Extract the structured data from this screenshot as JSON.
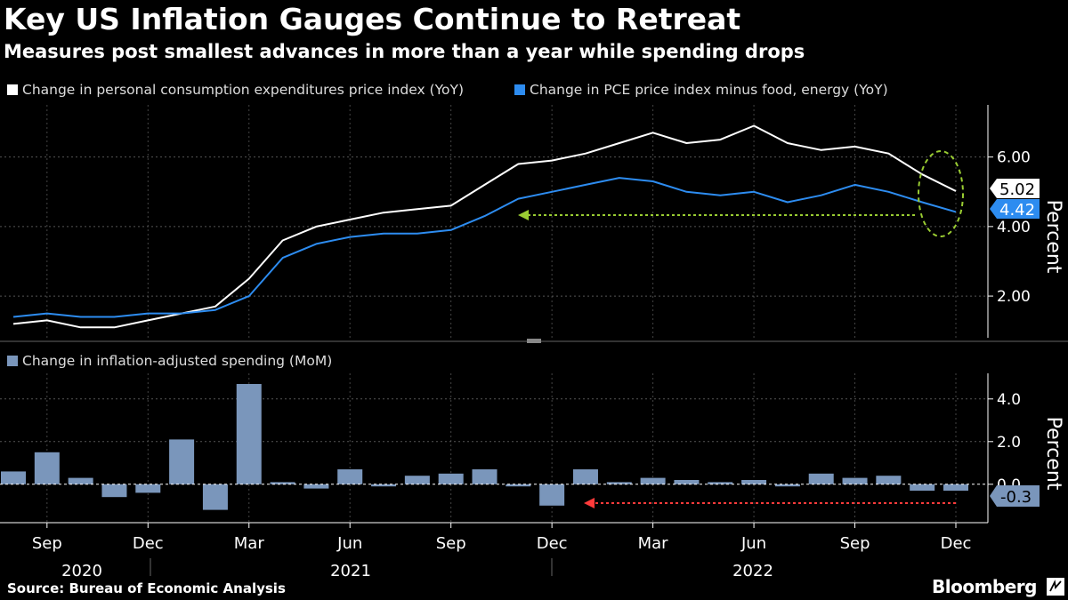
{
  "title": "Key US Inflation Gauges Continue to Retreat",
  "subtitle": "Measures post smallest advances in more than a year while spending drops",
  "source": "Source: Bureau of Economic Analysis",
  "brand": "Bloomberg",
  "chart_data": [
    {
      "type": "line",
      "ylabel": "Percent",
      "y_ticks": [
        "2.00",
        "4.00",
        "6.00"
      ],
      "ylim": [
        0.8,
        7.5
      ],
      "x": [
        "2020-08",
        "2020-09",
        "2020-10",
        "2020-11",
        "2020-12",
        "2021-01",
        "2021-02",
        "2021-03",
        "2021-04",
        "2021-05",
        "2021-06",
        "2021-07",
        "2021-08",
        "2021-09",
        "2021-10",
        "2021-11",
        "2021-12",
        "2022-01",
        "2022-02",
        "2022-03",
        "2022-04",
        "2022-05",
        "2022-06",
        "2022-07",
        "2022-08",
        "2022-09",
        "2022-10",
        "2022-11",
        "2022-12"
      ],
      "series": [
        {
          "name": "Change in personal consumption expenditures price index (YoY)",
          "color": "#ffffff",
          "values": [
            1.2,
            1.3,
            1.1,
            1.1,
            1.3,
            1.5,
            1.7,
            2.5,
            3.6,
            4.0,
            4.2,
            4.4,
            4.5,
            4.6,
            5.2,
            5.8,
            5.9,
            6.1,
            6.4,
            6.7,
            6.4,
            6.5,
            6.9,
            6.4,
            6.2,
            6.3,
            6.1,
            5.5,
            5.02
          ]
        },
        {
          "name": "Change in PCE price index minus food, energy (YoY)",
          "color": "#2d8cf0",
          "values": [
            1.4,
            1.5,
            1.4,
            1.4,
            1.5,
            1.5,
            1.6,
            2.0,
            3.1,
            3.5,
            3.7,
            3.8,
            3.8,
            3.9,
            4.3,
            4.8,
            5.0,
            5.2,
            5.4,
            5.3,
            5.0,
            4.9,
            5.0,
            4.7,
            4.9,
            5.2,
            5.0,
            4.7,
            4.42
          ]
        }
      ],
      "end_labels": [
        "5.02",
        "4.42"
      ],
      "annotation_colors": {
        "arrow": "#9acd32",
        "circle": "#9acd32"
      }
    },
    {
      "type": "bar",
      "ylabel": "Percent",
      "y_ticks": [
        "2.0",
        "4.0"
      ],
      "zero_tick": "0.0",
      "ylim": [
        -1.8,
        5.2
      ],
      "series": [
        {
          "name": "Change in inflation-adjusted spending (MoM)",
          "color": "#7a96bb",
          "values": [
            0.6,
            1.5,
            0.3,
            -0.6,
            -0.4,
            2.1,
            -1.2,
            4.7,
            0.1,
            -0.2,
            0.7,
            -0.1,
            0.4,
            0.5,
            0.7,
            -0.1,
            -1.0,
            0.7,
            0.1,
            0.3,
            0.2,
            0.1,
            0.2,
            -0.1,
            0.5,
            0.3,
            0.4,
            -0.3,
            -0.3
          ]
        }
      ],
      "end_label": "-0.3",
      "annotation_colors": {
        "arrow": "#ff3b3b"
      }
    }
  ],
  "x_axis": {
    "month_ticks": [
      "Sep",
      "Dec",
      "Mar",
      "Jun",
      "Sep",
      "Dec",
      "Mar",
      "Jun",
      "Sep",
      "Dec"
    ],
    "year_labels": [
      "2020",
      "2021",
      "2022"
    ]
  },
  "colors": {
    "background": "#000000",
    "grid": "#555555",
    "axis_text": "#ffffff"
  }
}
